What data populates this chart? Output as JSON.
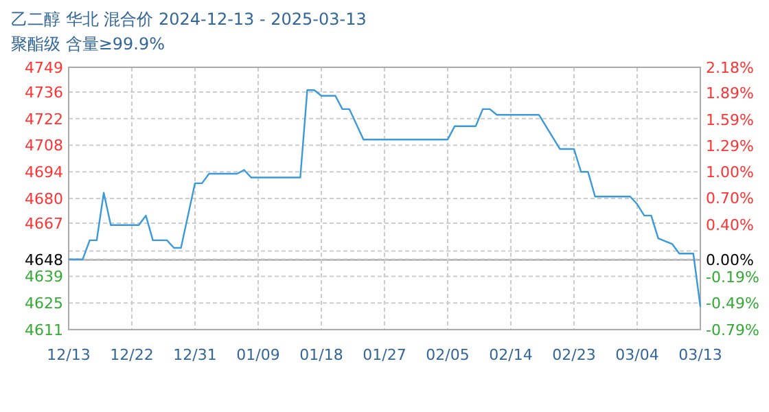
{
  "chart_data": {
    "type": "line",
    "title": "乙二醇 华北 混合价 2024-12-13 - 2025-03-13",
    "subtitle": "聚酯级 含量≥99.9%",
    "x": [
      "2024-12-13",
      "2024-12-15",
      "2024-12-16",
      "2024-12-17",
      "2024-12-18",
      "2024-12-19",
      "2024-12-23",
      "2024-12-24",
      "2024-12-25",
      "2024-12-27",
      "2024-12-28",
      "2024-12-29",
      "2024-12-31",
      "2025-01-01",
      "2025-01-02",
      "2025-01-06",
      "2025-01-07",
      "2025-01-08",
      "2025-01-15",
      "2025-01-16",
      "2025-01-17",
      "2025-01-18",
      "2025-01-20",
      "2025-01-21",
      "2025-01-22",
      "2025-01-24",
      "2025-02-05",
      "2025-02-06",
      "2025-02-09",
      "2025-02-10",
      "2025-02-11",
      "2025-02-12",
      "2025-02-18",
      "2025-02-21",
      "2025-02-23",
      "2025-02-24",
      "2025-02-25",
      "2025-02-26",
      "2025-03-03",
      "2025-03-04",
      "2025-03-05",
      "2025-03-06",
      "2025-03-07",
      "2025-03-09",
      "2025-03-10",
      "2025-03-12",
      "2025-03-13"
    ],
    "series": [
      {
        "color": "#3a9ad9",
        "values": [
          4648,
          4648,
          4658,
          4658,
          4683,
          4666,
          4666,
          4671,
          4658,
          4658,
          4654,
          4654,
          4688,
          4688,
          4693,
          4693,
          4695,
          4691,
          4691,
          4737,
          4737,
          4734,
          4734,
          4727,
          4727,
          4711,
          4711,
          4718,
          4718,
          4727,
          4727,
          4724,
          4724,
          4706,
          4706,
          4694,
          4694,
          4681,
          4681,
          4677,
          4671,
          4671,
          4659,
          4656,
          4651,
          4651,
          4623
        ]
      }
    ],
    "xlim": [
      "2024-12-13",
      "2025-03-13"
    ],
    "xticks": [
      {
        "value": "2024-12-13",
        "label": "12/13"
      },
      {
        "value": "2024-12-22",
        "label": "12/22"
      },
      {
        "value": "2024-12-31",
        "label": "12/31"
      },
      {
        "value": "2025-01-09",
        "label": "01/09"
      },
      {
        "value": "2025-01-18",
        "label": "01/18"
      },
      {
        "value": "2025-01-27",
        "label": "01/27"
      },
      {
        "value": "2025-02-05",
        "label": "02/05"
      },
      {
        "value": "2025-02-14",
        "label": "02/14"
      },
      {
        "value": "2025-02-23",
        "label": "02/23"
      },
      {
        "value": "2025-03-04",
        "label": "03/04"
      },
      {
        "value": "2025-03-13",
        "label": "03/13"
      }
    ],
    "ylim": [
      4611,
      4749
    ],
    "yticks": [
      4611,
      4625,
      4639,
      4648,
      {
        "value": 4652.4,
        "label": null
      },
      4667,
      4680,
      4694,
      4708,
      4722,
      4736,
      4749
    ],
    "y2lim": [
      -0.79,
      2.18
    ],
    "y2ticks": [
      {
        "value": -0.79,
        "label": "-0.79%"
      },
      {
        "value": -0.49,
        "label": "-0.49%"
      },
      {
        "value": -0.19,
        "label": "-0.19%"
      },
      {
        "value": 0,
        "label": "0.00%"
      },
      {
        "value": 0.4,
        "label": "0.40%"
      },
      {
        "value": 0.7,
        "label": "0.70%"
      },
      {
        "value": 1,
        "label": "1.00%"
      },
      {
        "value": 1.29,
        "label": "1.29%"
      },
      {
        "value": 1.59,
        "label": "1.59%"
      },
      {
        "value": 1.89,
        "label": "1.89%"
      },
      {
        "value": 2.18,
        "label": "2.18%"
      }
    ],
    "grid": true,
    "marker": "none",
    "line_style": "solid"
  }
}
